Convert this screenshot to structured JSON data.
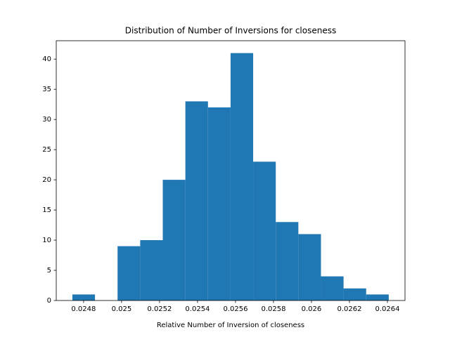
{
  "chart_data": {
    "type": "histogram",
    "title": "Distribution of Number of Inversions for closeness",
    "x_label": "Relative Number of Inversion of closeness",
    "bins": [
      0.024741,
      0.02486,
      0.024979,
      0.025098,
      0.025217,
      0.025336,
      0.025455,
      0.025574,
      0.025693,
      0.025812,
      0.025931,
      0.02605,
      0.026169,
      0.026288,
      0.026407
    ],
    "values": [
      1,
      0,
      9,
      10,
      20,
      33,
      32,
      41,
      23,
      13,
      11,
      4,
      2,
      1
    ],
    "color": "#1f77b4",
    "xlim": [
      0.024656,
      0.0264926
    ],
    "xticks": [
      0.0248,
      0.025,
      0.0252,
      0.0254,
      0.0256,
      0.0258,
      0.026,
      0.0262,
      0.0264
    ],
    "ylim": [
      0,
      43.05
    ],
    "yticks": [
      0,
      5,
      10,
      15,
      20,
      25,
      30,
      35,
      40
    ]
  }
}
